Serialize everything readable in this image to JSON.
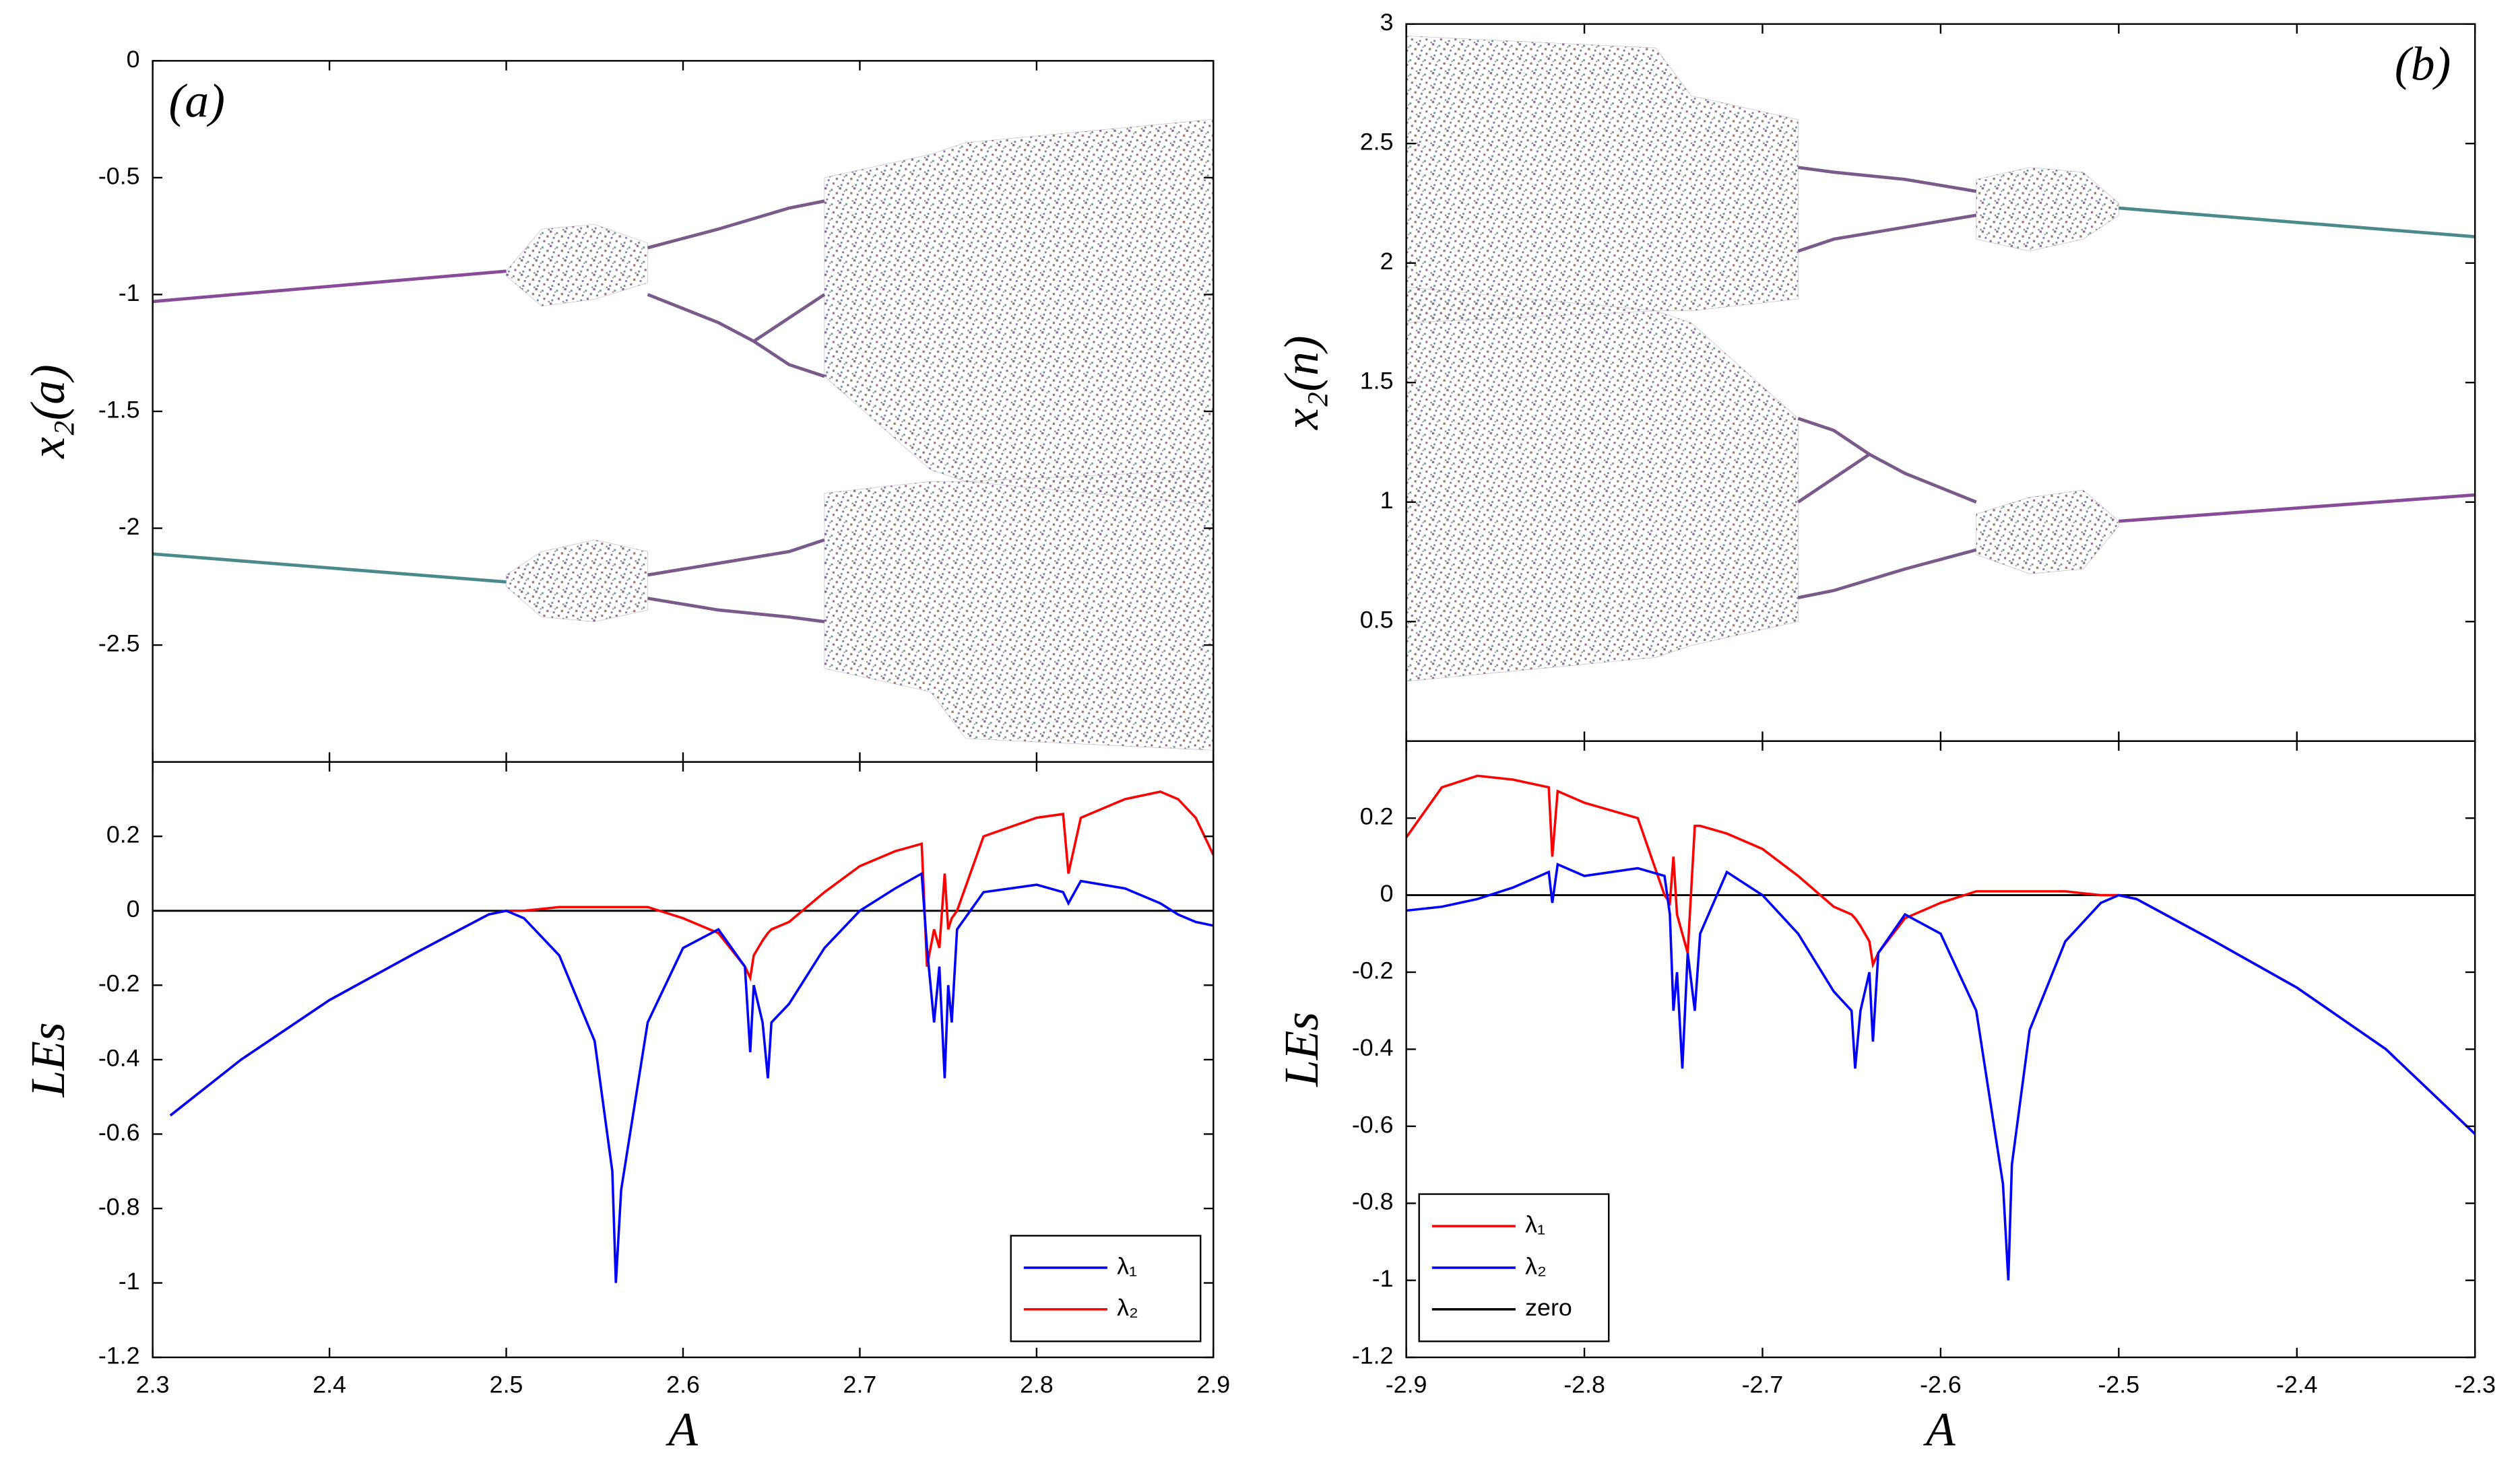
{
  "chart_data": [
    {
      "type": "bifurcation",
      "panel_label": "(a)",
      "ylabel": "x₂(a)",
      "xlim": [
        2.3,
        2.9
      ],
      "xticks": [
        2.3,
        2.4,
        2.5,
        2.6,
        2.7,
        2.8,
        2.9
      ],
      "ylim": [
        -3,
        0
      ],
      "yticks": [
        -2.5,
        -2,
        -1.5,
        -1,
        -0.5,
        0
      ],
      "point_color": "#7a5a8a",
      "branches": [
        {
          "color": "#8a4a9a",
          "x": [
            2.3,
            2.5
          ],
          "values": [
            -1.03,
            -0.9
          ]
        },
        {
          "color": "#4a8a8a",
          "x": [
            2.3,
            2.5
          ],
          "values": [
            -2.11,
            -2.23
          ]
        },
        {
          "color": "#7a5a8a",
          "x": [
            2.58,
            2.62,
            2.66,
            2.68
          ],
          "values": [
            -0.8,
            -0.72,
            -0.63,
            -0.6
          ]
        },
        {
          "color": "#7a5a8a",
          "x": [
            2.58,
            2.62,
            2.64,
            2.66,
            2.68
          ],
          "values": [
            -1.0,
            -1.12,
            -1.2,
            -1.1,
            -1.0
          ]
        },
        {
          "color": "#7a5a8a",
          "x": [
            2.64,
            2.66,
            2.68
          ],
          "values": [
            -1.2,
            -1.3,
            -1.35
          ]
        },
        {
          "color": "#7a5a8a",
          "x": [
            2.58,
            2.62,
            2.66,
            2.68
          ],
          "values": [
            -2.2,
            -2.15,
            -2.1,
            -2.05
          ]
        },
        {
          "color": "#7a5a8a",
          "x": [
            2.58,
            2.62,
            2.66,
            2.68
          ],
          "values": [
            -2.3,
            -2.35,
            -2.38,
            -2.4
          ]
        }
      ],
      "bands": [
        {
          "x": [
            2.5,
            2.52,
            2.55,
            2.58
          ],
          "low": [
            -0.92,
            -1.05,
            -1.02,
            -0.95
          ],
          "high": [
            -0.9,
            -0.72,
            -0.7,
            -0.78
          ]
        },
        {
          "x": [
            2.5,
            2.52,
            2.55,
            2.58
          ],
          "low": [
            -2.25,
            -2.38,
            -2.4,
            -2.35
          ],
          "high": [
            -2.2,
            -2.1,
            -2.05,
            -2.1
          ]
        },
        {
          "x": [
            2.68,
            2.74,
            2.76,
            2.9
          ],
          "low": [
            -1.35,
            -1.75,
            -1.8,
            -1.9
          ],
          "high": [
            -0.5,
            -0.4,
            -0.35,
            -0.25
          ]
        },
        {
          "x": [
            2.68,
            2.74,
            2.76,
            2.9
          ],
          "low": [
            -2.6,
            -2.7,
            -2.9,
            -2.95
          ],
          "high": [
            -1.85,
            -1.8,
            -1.8,
            -1.75
          ]
        }
      ]
    },
    {
      "type": "line",
      "ylabel": "LEs",
      "xlabel": "A",
      "xlim": [
        2.3,
        2.9
      ],
      "xticks": [
        2.3,
        2.4,
        2.5,
        2.6,
        2.7,
        2.8,
        2.9
      ],
      "ylim": [
        -1.2,
        0.4
      ],
      "yticks": [
        -1.2,
        -1,
        -0.8,
        -0.6,
        -0.4,
        -0.2,
        0,
        0.2
      ],
      "legend": "lower right",
      "zero_line": {
        "color": "#000000",
        "value": 0
      },
      "x": [
        2.31,
        2.35,
        2.4,
        2.45,
        2.49,
        2.5,
        2.51,
        2.53,
        2.55,
        2.56,
        2.562,
        2.565,
        2.58,
        2.6,
        2.62,
        2.635,
        2.638,
        2.64,
        2.645,
        2.648,
        2.65,
        2.66,
        2.68,
        2.7,
        2.72,
        2.735,
        2.738,
        2.742,
        2.745,
        2.748,
        2.75,
        2.752,
        2.755,
        2.77,
        2.8,
        2.815,
        2.818,
        2.825,
        2.85,
        2.87,
        2.88,
        2.89,
        2.9
      ],
      "series": [
        {
          "name": "λ₁",
          "color": "#0000ff",
          "values": [
            -0.55,
            -0.4,
            -0.24,
            -0.11,
            -0.01,
            0,
            -0.02,
            -0.12,
            -0.35,
            -0.7,
            -1.0,
            -0.75,
            -0.3,
            -0.1,
            -0.05,
            -0.15,
            -0.38,
            -0.2,
            -0.3,
            -0.45,
            -0.3,
            -0.25,
            -0.1,
            0,
            0.06,
            0.1,
            -0.1,
            -0.3,
            -0.15,
            -0.45,
            -0.2,
            -0.3,
            -0.05,
            0.05,
            0.07,
            0.05,
            0.02,
            0.08,
            0.06,
            0.02,
            -0.01,
            -0.03,
            -0.04
          ]
        },
        {
          "name": "λ₂",
          "color": "#ff0000",
          "values": [
            -0.55,
            -0.4,
            -0.24,
            -0.11,
            -0.01,
            0,
            0,
            0.01,
            0.01,
            0.01,
            0.01,
            0.01,
            0.01,
            -0.02,
            -0.06,
            -0.15,
            -0.18,
            -0.12,
            -0.08,
            -0.06,
            -0.05,
            -0.03,
            0.05,
            0.12,
            0.16,
            0.18,
            -0.15,
            -0.05,
            -0.1,
            0.1,
            -0.05,
            -0.02,
            0,
            0.2,
            0.25,
            0.26,
            0.1,
            0.25,
            0.3,
            0.32,
            0.3,
            0.25,
            0.15
          ]
        }
      ]
    },
    {
      "type": "bifurcation",
      "panel_label": "(b)",
      "ylabel": "x₂(n)",
      "xlim": [
        -2.9,
        -2.3
      ],
      "xticks": [
        -2.9,
        -2.8,
        -2.7,
        -2.6,
        -2.5,
        -2.4,
        -2.3
      ],
      "ylim": [
        0,
        3
      ],
      "yticks": [
        0.5,
        1,
        1.5,
        2,
        2.5,
        3
      ],
      "point_color": "#7a5a8a",
      "branches": [
        {
          "color": "#8a4a9a",
          "x": [
            -2.5,
            -2.3
          ],
          "values": [
            0.92,
            1.03
          ]
        },
        {
          "color": "#4a8a8a",
          "x": [
            -2.5,
            -2.3
          ],
          "values": [
            2.23,
            2.11
          ]
        },
        {
          "color": "#7a5a8a",
          "x": [
            -2.68,
            -2.66,
            -2.62,
            -2.58
          ],
          "values": [
            0.6,
            0.63,
            0.72,
            0.8
          ]
        },
        {
          "color": "#7a5a8a",
          "x": [
            -2.68,
            -2.66,
            -2.64,
            -2.62,
            -2.58
          ],
          "values": [
            1.0,
            1.1,
            1.2,
            1.12,
            1.0
          ]
        },
        {
          "color": "#7a5a8a",
          "x": [
            -2.68,
            -2.66,
            -2.64
          ],
          "values": [
            1.35,
            1.3,
            1.2
          ]
        },
        {
          "color": "#7a5a8a",
          "x": [
            -2.68,
            -2.66,
            -2.62,
            -2.58
          ],
          "values": [
            2.05,
            2.1,
            2.15,
            2.2
          ]
        },
        {
          "color": "#7a5a8a",
          "x": [
            -2.68,
            -2.66,
            -2.62,
            -2.58
          ],
          "values": [
            2.4,
            2.38,
            2.35,
            2.3
          ]
        }
      ],
      "bands": [
        {
          "x": [
            -2.58,
            -2.55,
            -2.52,
            -2.5
          ],
          "low": [
            0.78,
            0.7,
            0.72,
            0.9
          ],
          "high": [
            0.95,
            1.02,
            1.05,
            0.92
          ]
        },
        {
          "x": [
            -2.58,
            -2.55,
            -2.52,
            -2.5
          ],
          "low": [
            2.1,
            2.05,
            2.1,
            2.2
          ],
          "high": [
            2.35,
            2.4,
            2.38,
            2.25
          ]
        },
        {
          "x": [
            -2.9,
            -2.76,
            -2.74,
            -2.68
          ],
          "low": [
            0.25,
            0.35,
            0.4,
            0.5
          ],
          "high": [
            1.9,
            1.8,
            1.75,
            1.35
          ]
        },
        {
          "x": [
            -2.9,
            -2.76,
            -2.74,
            -2.68
          ],
          "low": [
            1.75,
            1.8,
            1.8,
            1.85
          ],
          "high": [
            2.95,
            2.9,
            2.7,
            2.6
          ]
        }
      ]
    },
    {
      "type": "line",
      "ylabel": "LEs",
      "xlabel": "A",
      "xlim": [
        -2.9,
        -2.3
      ],
      "xticks": [
        -2.9,
        -2.8,
        -2.7,
        -2.6,
        -2.5,
        -2.4,
        -2.3
      ],
      "ylim": [
        -1.2,
        0.4
      ],
      "yticks": [
        -1.2,
        -1,
        -0.8,
        -0.6,
        -0.4,
        -0.2,
        0,
        0.2
      ],
      "legend": "lower left",
      "zero_line": {
        "name": "zero",
        "color": "#000000",
        "value": 0
      },
      "x": [
        -2.9,
        -2.88,
        -2.86,
        -2.84,
        -2.82,
        -2.818,
        -2.815,
        -2.8,
        -2.77,
        -2.755,
        -2.752,
        -2.75,
        -2.748,
        -2.745,
        -2.742,
        -2.738,
        -2.735,
        -2.72,
        -2.7,
        -2.68,
        -2.66,
        -2.65,
        -2.648,
        -2.645,
        -2.64,
        -2.638,
        -2.635,
        -2.62,
        -2.6,
        -2.58,
        -2.565,
        -2.562,
        -2.56,
        -2.55,
        -2.53,
        -2.51,
        -2.5,
        -2.49,
        -2.45,
        -2.4,
        -2.35,
        -2.3
      ],
      "series": [
        {
          "name": "λ₁",
          "color": "#ff0000",
          "values": [
            0.15,
            0.28,
            0.31,
            0.3,
            0.28,
            0.1,
            0.27,
            0.24,
            0.2,
            0,
            -0.02,
            0.1,
            -0.05,
            -0.1,
            -0.15,
            0.18,
            0.18,
            0.16,
            0.12,
            0.05,
            -0.03,
            -0.05,
            -0.06,
            -0.08,
            -0.12,
            -0.18,
            -0.15,
            -0.06,
            -0.02,
            0.01,
            0.01,
            0.01,
            0.01,
            0.01,
            0.01,
            0,
            0,
            -0.01,
            -0.11,
            -0.24,
            -0.4,
            -0.62
          ]
        },
        {
          "name": "λ₂",
          "color": "#0000ff",
          "values": [
            -0.04,
            -0.03,
            -0.01,
            0.02,
            0.06,
            -0.02,
            0.08,
            0.05,
            0.07,
            0.05,
            -0.05,
            -0.3,
            -0.2,
            -0.45,
            -0.15,
            -0.3,
            -0.1,
            0.06,
            0,
            -0.1,
            -0.25,
            -0.3,
            -0.45,
            -0.3,
            -0.2,
            -0.38,
            -0.15,
            -0.05,
            -0.1,
            -0.3,
            -0.75,
            -1.0,
            -0.7,
            -0.35,
            -0.12,
            -0.02,
            0,
            -0.01,
            -0.11,
            -0.24,
            -0.4,
            -0.62
          ]
        }
      ]
    }
  ]
}
